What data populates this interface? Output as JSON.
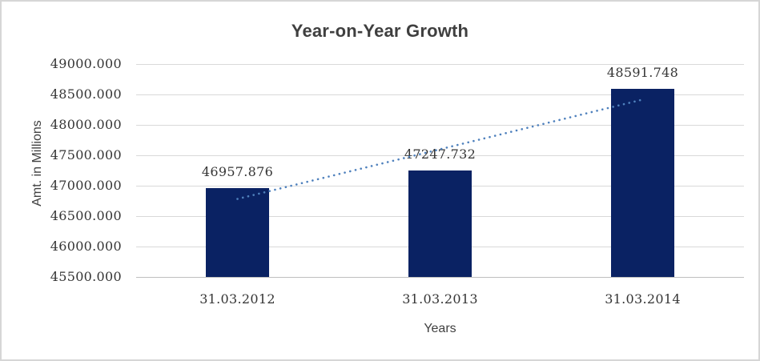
{
  "chart_data": {
    "type": "bar",
    "title": "Year-on-Year Growth",
    "xlabel": "Years",
    "ylabel": "Amt. in Millions",
    "categories": [
      "31.03.2012",
      "31.03.2013",
      "31.03.2014"
    ],
    "values": [
      46957.876,
      47247.732,
      48591.748
    ],
    "data_labels": [
      "46957.876",
      "47247.732",
      "48591.748"
    ],
    "ylim": [
      45500,
      49000
    ],
    "ytick_step": 500,
    "ytick_labels": [
      "49000.000",
      "48500.000",
      "48000.000",
      "47500.000",
      "47000.000",
      "46500.000",
      "46000.000",
      "45500.000"
    ],
    "grid": true,
    "legend": "none",
    "trendline": {
      "type": "linear",
      "style": "dotted",
      "color": "#4f81bd"
    },
    "colors": {
      "bar": "#0a2263",
      "gridline": "#d9d9d9",
      "axis_line": "#bfbfbf",
      "title": "#3f3f3f",
      "tick_label": "#353535",
      "axis_title": "#404040",
      "frame_border": "#d6d6d6"
    }
  }
}
